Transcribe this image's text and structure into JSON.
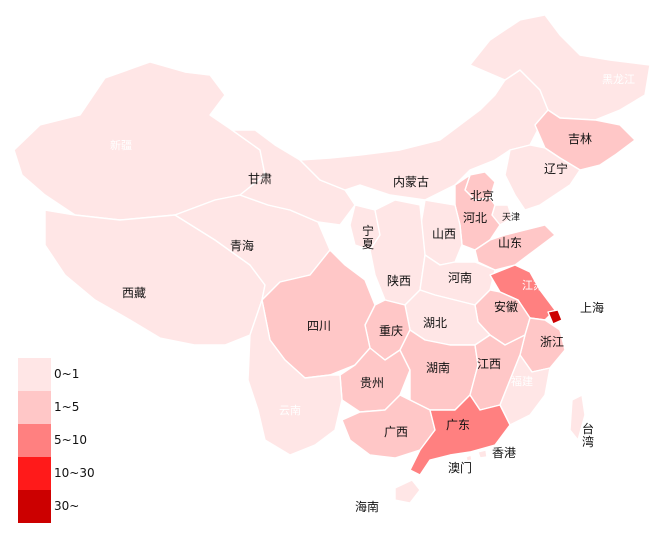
{
  "map": {
    "colors": {
      "b0": "#ffe6e6",
      "b1": "#ffc7c7",
      "b2": "#ff8080",
      "b3": "#ff1a1a",
      "b4": "#cc0000"
    },
    "labels": {
      "heilongjiang": "黑龙江",
      "jilin": "吉林",
      "liaoning": "辽宁",
      "neimenggu": "内蒙古",
      "xinjiang": "新疆",
      "gansu": "甘肃",
      "beijing": "北京",
      "hebei": "河北",
      "tianjin": "天津",
      "ningxia": "宁夏",
      "shanxi": "山西",
      "shandong": "山东",
      "qinghai": "青海",
      "shaanxi": "陕西",
      "henan": "河南",
      "jiangsu": "江苏",
      "xizang": "西藏",
      "anhui": "安徽",
      "shanghai": "上海",
      "sichuan": "四川",
      "chongqing": "重庆",
      "hubei": "湖北",
      "zhejiang": "浙江",
      "guizhou": "贵州",
      "hunan": "湖南",
      "jiangxi": "江西",
      "fujian": "福建",
      "yunnan": "云南",
      "guangxi": "广西",
      "guangdong": "广东",
      "taiwan": "台湾",
      "hongkong": "香港",
      "macau": "澳门",
      "hainan": "海南"
    }
  },
  "legend": [
    {
      "label": "0~1",
      "color": "#ffe6e6"
    },
    {
      "label": "1~5",
      "color": "#ffc7c7"
    },
    {
      "label": "5~10",
      "color": "#ff8080"
    },
    {
      "label": "10~30",
      "color": "#ff1a1a"
    },
    {
      "label": "30~",
      "color": "#cc0000"
    }
  ]
}
